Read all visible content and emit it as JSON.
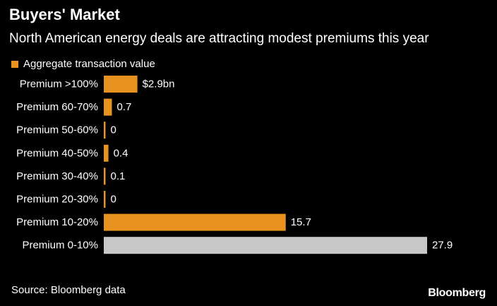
{
  "header": {
    "title": "Buyers' Market",
    "subtitle": "North American energy deals are attracting modest premiums this year"
  },
  "legend": {
    "label": "Aggregate transaction value",
    "color": "#e8921f"
  },
  "footer": {
    "source": "Source: Bloomberg data",
    "brand": "Bloomberg"
  },
  "chart_data": {
    "type": "bar",
    "orientation": "horizontal",
    "title": "Buyers' Market",
    "subtitle": "North American energy deals are attracting modest premiums this year",
    "xlabel": "",
    "ylabel": "",
    "unit": "$bn",
    "grid": false,
    "legend_position": "top-left",
    "xlim": [
      0,
      27.9
    ],
    "categories": [
      "Premium >100%",
      "Premium 60-70%",
      "Premium 50-60%",
      "Premium 40-50%",
      "Premium 30-40%",
      "Premium 20-30%",
      "Premium 10-20%",
      "Premium 0-10%"
    ],
    "series": [
      {
        "name": "Aggregate transaction value",
        "values": [
          2.9,
          0.7,
          0,
          0.4,
          0.1,
          0,
          15.7,
          27.9
        ]
      }
    ],
    "value_labels": [
      "$2.9bn",
      "0.7",
      "0",
      "0.4",
      "0.1",
      "0",
      "15.7",
      "27.9"
    ],
    "bar_colors": [
      "#e8921f",
      "#e8921f",
      "#e8921f",
      "#e8921f",
      "#e8921f",
      "#e8921f",
      "#e8921f",
      "#c8c8c8"
    ]
  }
}
